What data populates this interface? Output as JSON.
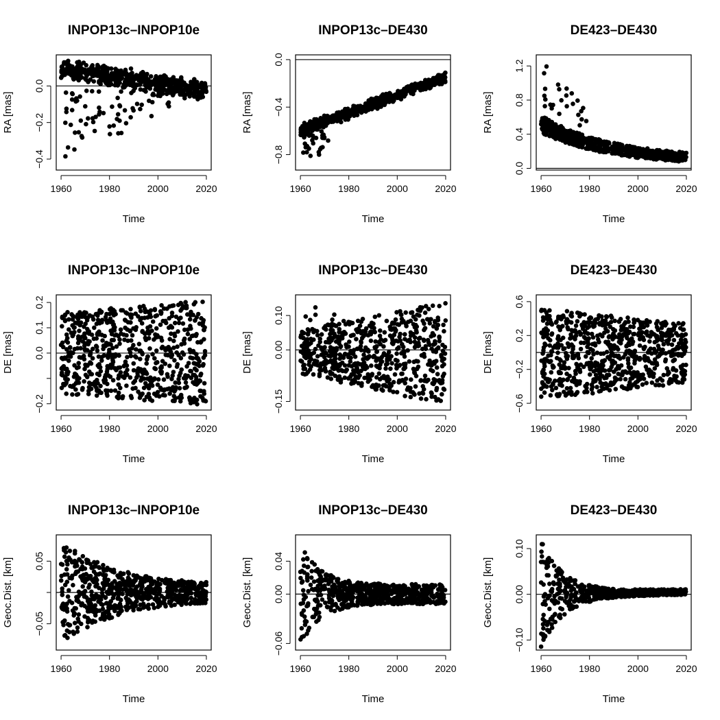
{
  "figure": {
    "description_free": true,
    "colors": {
      "points": "#000000",
      "background": "#ffffff"
    }
  },
  "chart_data": [
    {
      "type": "scatter",
      "panel": "r1c1",
      "title": "INPOP13c–INPOP10e",
      "xlabel": "Time",
      "ylabel": "RA [mas]",
      "xlim": [
        1958,
        2022
      ],
      "ylim": [
        -0.46,
        0.17
      ],
      "xticks": [
        1960,
        1980,
        2000,
        2020
      ],
      "yticks": [
        0.0,
        -0.2,
        -0.4
      ],
      "ytick_labels": [
        "0.0",
        "−0.2",
        "−0.4"
      ],
      "hline": 0,
      "series": [
        {
          "name": "main",
          "gen": {
            "kind": "band",
            "y0s": 0.1,
            "y1s": -0.03,
            "y0w": 0.06,
            "y1w": 0.06,
            "n": 600
          }
        },
        {
          "name": "outliers",
          "gen": {
            "kind": "spread",
            "x0": 1961,
            "x1": 2005,
            "ylo0": -0.43,
            "ylo1": -0.12,
            "yhi0": 0.02,
            "yhi1": 0.0,
            "n": 80
          }
        }
      ]
    },
    {
      "type": "scatter",
      "panel": "r1c2",
      "title": "INPOP13c–DE430",
      "xlabel": "Time",
      "ylabel": "RA [mas]",
      "xlim": [
        1958,
        2022
      ],
      "ylim": [
        -0.93,
        0.04
      ],
      "xticks": [
        1960,
        1980,
        2000,
        2020
      ],
      "yticks": [
        0.0,
        -0.4,
        -0.8
      ],
      "ytick_labels": [
        "0.0",
        "−0.4",
        "−0.8"
      ],
      "hline": 0,
      "series": [
        {
          "name": "main",
          "gen": {
            "kind": "band",
            "y0s": -0.6,
            "y1s": -0.15,
            "y0w": 0.06,
            "y1w": 0.05,
            "n": 600
          }
        },
        {
          "name": "outliers",
          "gen": {
            "kind": "spread",
            "x0": 1961,
            "x1": 1972,
            "ylo0": -0.88,
            "ylo1": -0.75,
            "yhi0": -0.62,
            "yhi1": -0.55,
            "n": 30
          }
        }
      ]
    },
    {
      "type": "scatter",
      "panel": "r1c3",
      "title": "DE423–DE430",
      "xlabel": "Time",
      "ylabel": "RA [mas]",
      "xlim": [
        1958,
        2022
      ],
      "ylim": [
        -0.02,
        1.33
      ],
      "xticks": [
        1960,
        1980,
        2000,
        2020
      ],
      "yticks": [
        0.0,
        0.4,
        0.8,
        1.2
      ],
      "ytick_labels": [
        "0.0",
        "0.4",
        "0.8",
        "1.2"
      ],
      "hline": 0,
      "series": [
        {
          "name": "main",
          "gen": {
            "kind": "decay",
            "c0": 0.52,
            "c1": 0.08,
            "w0": 0.2,
            "w1": 0.1,
            "tau": 28,
            "n": 650
          }
        },
        {
          "name": "outliers",
          "gen": {
            "kind": "spread",
            "x0": 1961,
            "x1": 1980,
            "ylo0": 0.65,
            "ylo1": 0.45,
            "yhi0": 1.25,
            "yhi1": 0.65,
            "n": 25
          }
        }
      ]
    },
    {
      "type": "scatter",
      "panel": "r2c1",
      "title": "INPOP13c–INPOP10e",
      "xlabel": "Time",
      "ylabel": "DE [mas]",
      "xlim": [
        1958,
        2022
      ],
      "ylim": [
        -0.225,
        0.23
      ],
      "xticks": [
        1960,
        1980,
        2000,
        2020
      ],
      "yticks": [
        -0.2,
        -0.1,
        0.0,
        0.1,
        0.2
      ],
      "ytick_labels": [
        "−0.2",
        "",
        "0.0",
        "0.1",
        "0.2"
      ],
      "hline": 0,
      "series": [
        {
          "name": "main",
          "gen": {
            "kind": "uniform",
            "lo0": -0.16,
            "lo1": -0.21,
            "hi0": 0.16,
            "hi1": 0.21,
            "n": 700
          }
        }
      ]
    },
    {
      "type": "scatter",
      "panel": "r2c2",
      "title": "INPOP13c–DE430",
      "xlabel": "Time",
      "ylabel": "DE [mas]",
      "xlim": [
        1958,
        2022
      ],
      "ylim": [
        -0.175,
        0.16
      ],
      "xticks": [
        1960,
        1980,
        2000,
        2020
      ],
      "yticks": [
        -0.15,
        0.0,
        0.1
      ],
      "ytick_labels": [
        "−0.15",
        "0.00",
        "0.10"
      ],
      "hline": 0,
      "series": [
        {
          "name": "main",
          "gen": {
            "kind": "uniform",
            "lo0": -0.07,
            "lo1": -0.16,
            "hi0": 0.06,
            "hi1": 0.14,
            "n": 650
          }
        },
        {
          "name": "outliers",
          "gen": {
            "kind": "spread",
            "x0": 1961,
            "x1": 1975,
            "ylo0": 0.08,
            "ylo1": 0.07,
            "yhi0": 0.15,
            "yhi1": 0.1,
            "n": 8
          }
        }
      ]
    },
    {
      "type": "scatter",
      "panel": "r2c3",
      "title": "DE423–DE430",
      "xlabel": "Time",
      "ylabel": "DE [mas]",
      "xlim": [
        1958,
        2022
      ],
      "ylim": [
        -0.68,
        0.68
      ],
      "xticks": [
        1960,
        1980,
        2000,
        2020
      ],
      "yticks": [
        -0.6,
        -0.2,
        0.2,
        0.6
      ],
      "ytick_labels": [
        "−0.6",
        "−0.2",
        "0.2",
        "0.6"
      ],
      "hline": 0,
      "series": [
        {
          "name": "main",
          "gen": {
            "kind": "uniform",
            "lo0": -0.55,
            "lo1": -0.36,
            "hi0": 0.52,
            "hi1": 0.34,
            "n": 750
          }
        }
      ]
    },
    {
      "type": "scatter",
      "panel": "r3c1",
      "title": "INPOP13c–INPOP10e",
      "xlabel": "Time",
      "ylabel": "Geoc.Dist. [km]",
      "xlim": [
        1958,
        2022
      ],
      "ylim": [
        -0.092,
        0.092
      ],
      "xticks": [
        1960,
        1980,
        2000,
        2020
      ],
      "yticks": [
        -0.05,
        0.0,
        0.05
      ],
      "ytick_labels": [
        "−0.05",
        "",
        "0.05"
      ],
      "hline": 0,
      "series": [
        {
          "name": "main",
          "gen": {
            "kind": "funnel",
            "c0": 0.0,
            "c1": 0.0,
            "a0": 0.085,
            "a1": 0.012,
            "tau": 22,
            "n": 700
          }
        }
      ]
    },
    {
      "type": "scatter",
      "panel": "r3c2",
      "title": "INPOP13c–DE430",
      "xlabel": "Time",
      "ylabel": "Geoc.Dist. [km]",
      "xlim": [
        1958,
        2022
      ],
      "ylim": [
        -0.068,
        0.072
      ],
      "xticks": [
        1960,
        1980,
        2000,
        2020
      ],
      "yticks": [
        -0.06,
        0.0,
        0.04
      ],
      "ytick_labels": [
        "−0.06",
        "0.00",
        "0.04"
      ],
      "hline": 0,
      "series": [
        {
          "name": "main",
          "gen": {
            "kind": "funnel",
            "c0": 0.0,
            "c1": 0.0,
            "a0": 0.065,
            "a1": 0.012,
            "tau": 8,
            "n": 650
          }
        }
      ]
    },
    {
      "type": "scatter",
      "panel": "r3c3",
      "title": "DE423–DE430",
      "xlabel": "Time",
      "ylabel": "Geoc.Dist. [km]",
      "xlim": [
        1958,
        2022
      ],
      "ylim": [
        -0.122,
        0.13
      ],
      "xticks": [
        1960,
        1980,
        2000,
        2020
      ],
      "yticks": [
        -0.1,
        0.0,
        0.1
      ],
      "ytick_labels": [
        "−0.10",
        "0.00",
        "0.10"
      ],
      "hline": 0,
      "series": [
        {
          "name": "main",
          "gen": {
            "kind": "funnel",
            "c0": 0.0,
            "c1": 0.005,
            "a0": 0.12,
            "a1": 0.006,
            "tau": 9,
            "n": 600
          }
        }
      ]
    }
  ]
}
